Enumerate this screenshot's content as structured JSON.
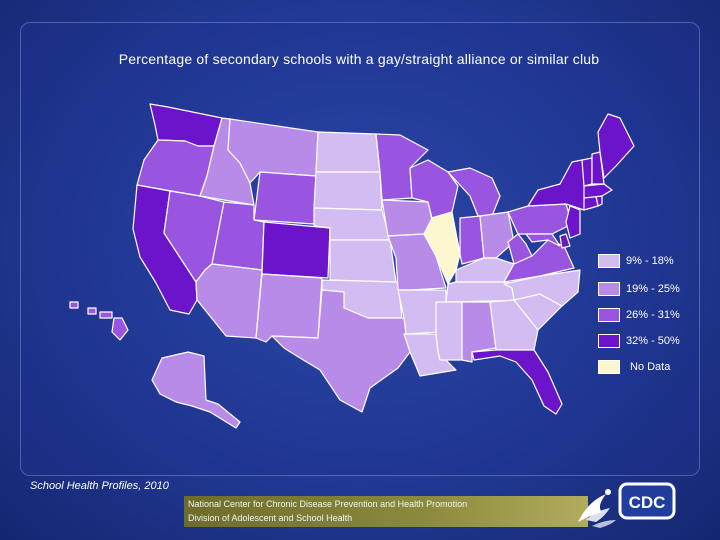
{
  "title": "Percentage of secondary schools with a gay/straight alliance or similar club",
  "source": "School Health Profiles, 2010",
  "footer": {
    "line1": "National Center for Chronic Disease Prevention and Health Promotion",
    "line2": "Division of Adolescent and School Health"
  },
  "logo": {
    "text": "CDC",
    "icon": "hhs-eagle-icon"
  },
  "legend": [
    {
      "label": "9% - 18%",
      "color": "#d2bcf2"
    },
    {
      "label": "19% - 25%",
      "color": "#b98be9"
    },
    {
      "label": "26% - 31%",
      "color": "#9a55e0"
    },
    {
      "label": "32% - 50%",
      "color": "#6c14c9"
    },
    {
      "label": "No Data",
      "color": "#fdf7d0"
    }
  ],
  "colors": {
    "background": "#223a96",
    "state_border": "#ffffff"
  }
}
